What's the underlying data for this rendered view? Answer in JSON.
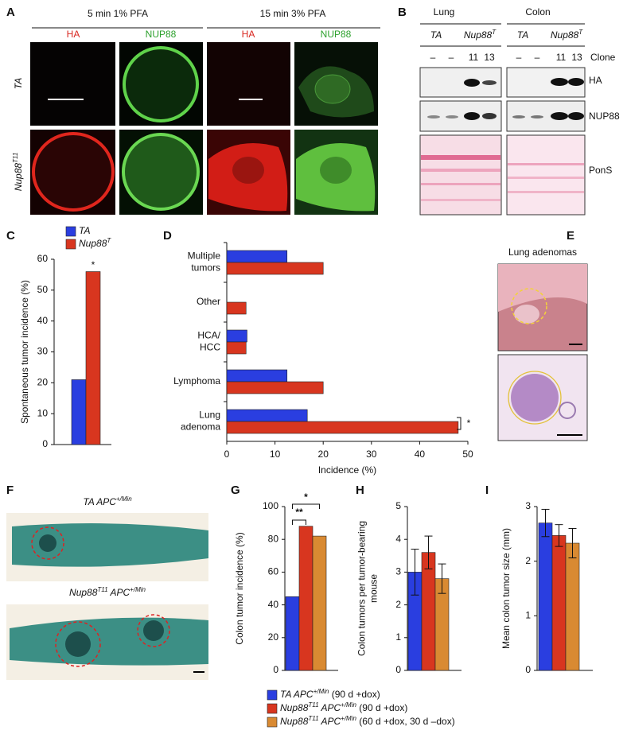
{
  "panels": {
    "A": {
      "label": "A",
      "conditions": [
        "5 min 1% PFA",
        "15 min 3% PFA"
      ],
      "channels": [
        "HA",
        "NUP88",
        "HA",
        "NUP88"
      ],
      "rows": [
        [
          "TA"
        ],
        [
          "Nup88",
          "T11"
        ]
      ]
    },
    "B": {
      "label": "B",
      "tissues": [
        "Lung",
        "Colon"
      ],
      "genotypes": [
        [
          "TA"
        ],
        [
          "Nup88",
          "T"
        ],
        [
          "TA"
        ],
        [
          "Nup88",
          "T"
        ]
      ],
      "clones": [
        "–",
        "–",
        "11",
        "13",
        "–",
        "–",
        "11",
        "13"
      ],
      "clone_label": "Clone",
      "blots": [
        "HA",
        "NUP88",
        "PonS"
      ]
    },
    "E": {
      "label": "E",
      "title": "Lung adenomas"
    },
    "F": {
      "label": "F",
      "captions": [
        [
          "TA APC",
          "+/Min"
        ],
        [
          "Nup88",
          "T11",
          " APC",
          "+/Min"
        ]
      ]
    }
  },
  "chart_data": [
    {
      "type": "bar",
      "panel_label": "C",
      "y_label": "Spontaneous tumor incidence (%)",
      "ylim": [
        0,
        60
      ],
      "yticks": [
        0,
        10,
        20,
        30,
        40,
        50,
        60
      ],
      "series": [
        {
          "name": [
            "TA"
          ],
          "color": "#2a3ee0",
          "values": [
            21
          ]
        },
        {
          "name": [
            "Nup88",
            "T"
          ],
          "color": "#d8361f",
          "values": [
            56
          ]
        }
      ],
      "annotations": [
        "*"
      ]
    },
    {
      "type": "hbar",
      "panel_label": "D",
      "x_label": "Incidence (%)",
      "categories": [
        "Multiple\ntumors",
        "Other",
        "HCA/\nHCC",
        "Lymphoma",
        "Lung\nadenoma"
      ],
      "xlim": [
        0,
        50
      ],
      "xticks": [
        0,
        10,
        20,
        30,
        40,
        50
      ],
      "series": [
        {
          "color": "#2a3ee0",
          "values": [
            12.5,
            0,
            4.2,
            12.5,
            16.7
          ]
        },
        {
          "color": "#d8361f",
          "values": [
            20,
            4,
            4,
            20,
            48
          ]
        }
      ],
      "annotations": [
        "*"
      ]
    },
    {
      "type": "bar",
      "panel_label": "G",
      "y_label": "Colon tumor incidence (%)",
      "ylim": [
        0,
        100
      ],
      "yticks": [
        0,
        20,
        40,
        60,
        80,
        100
      ],
      "series": [
        {
          "name": [
            "TA APC",
            "+/Min",
            " (90 d +dox)"
          ],
          "color": "#2a3ee0",
          "values": [
            45
          ]
        },
        {
          "name": [
            "Nup88",
            "T11",
            " APC",
            "+/Min",
            " (90 d +dox)"
          ],
          "color": "#d8361f",
          "values": [
            88
          ]
        },
        {
          "name": [
            "Nup88",
            "T11",
            " APC",
            "+/Min",
            " (60 d +dox, 30 d –dox)"
          ],
          "color": "#d98a32",
          "values": [
            82
          ]
        }
      ],
      "annotations": [
        "**",
        "*"
      ]
    },
    {
      "type": "bar",
      "panel_label": "H",
      "y_label": "Colon tumors per tumor-bearing\nmouse",
      "ylim": [
        0,
        5
      ],
      "yticks": [
        0,
        1,
        2,
        3,
        4,
        5
      ],
      "series": [
        {
          "color": "#2a3ee0",
          "values": [
            3.0
          ],
          "errors": [
            0.7
          ]
        },
        {
          "color": "#d8361f",
          "values": [
            3.6
          ],
          "errors": [
            0.5
          ]
        },
        {
          "color": "#d98a32",
          "values": [
            2.8
          ],
          "errors": [
            0.45
          ]
        }
      ]
    },
    {
      "type": "bar",
      "panel_label": "I",
      "y_label": "Mean colon tumor size (mm)",
      "ylim": [
        0,
        3
      ],
      "yticks": [
        0,
        1,
        2,
        3
      ],
      "series": [
        {
          "color": "#2a3ee0",
          "values": [
            2.7
          ],
          "errors": [
            0.25
          ]
        },
        {
          "color": "#d8361f",
          "values": [
            2.47
          ],
          "errors": [
            0.2
          ]
        },
        {
          "color": "#d98a32",
          "values": [
            2.33
          ],
          "errors": [
            0.27
          ]
        }
      ]
    }
  ]
}
